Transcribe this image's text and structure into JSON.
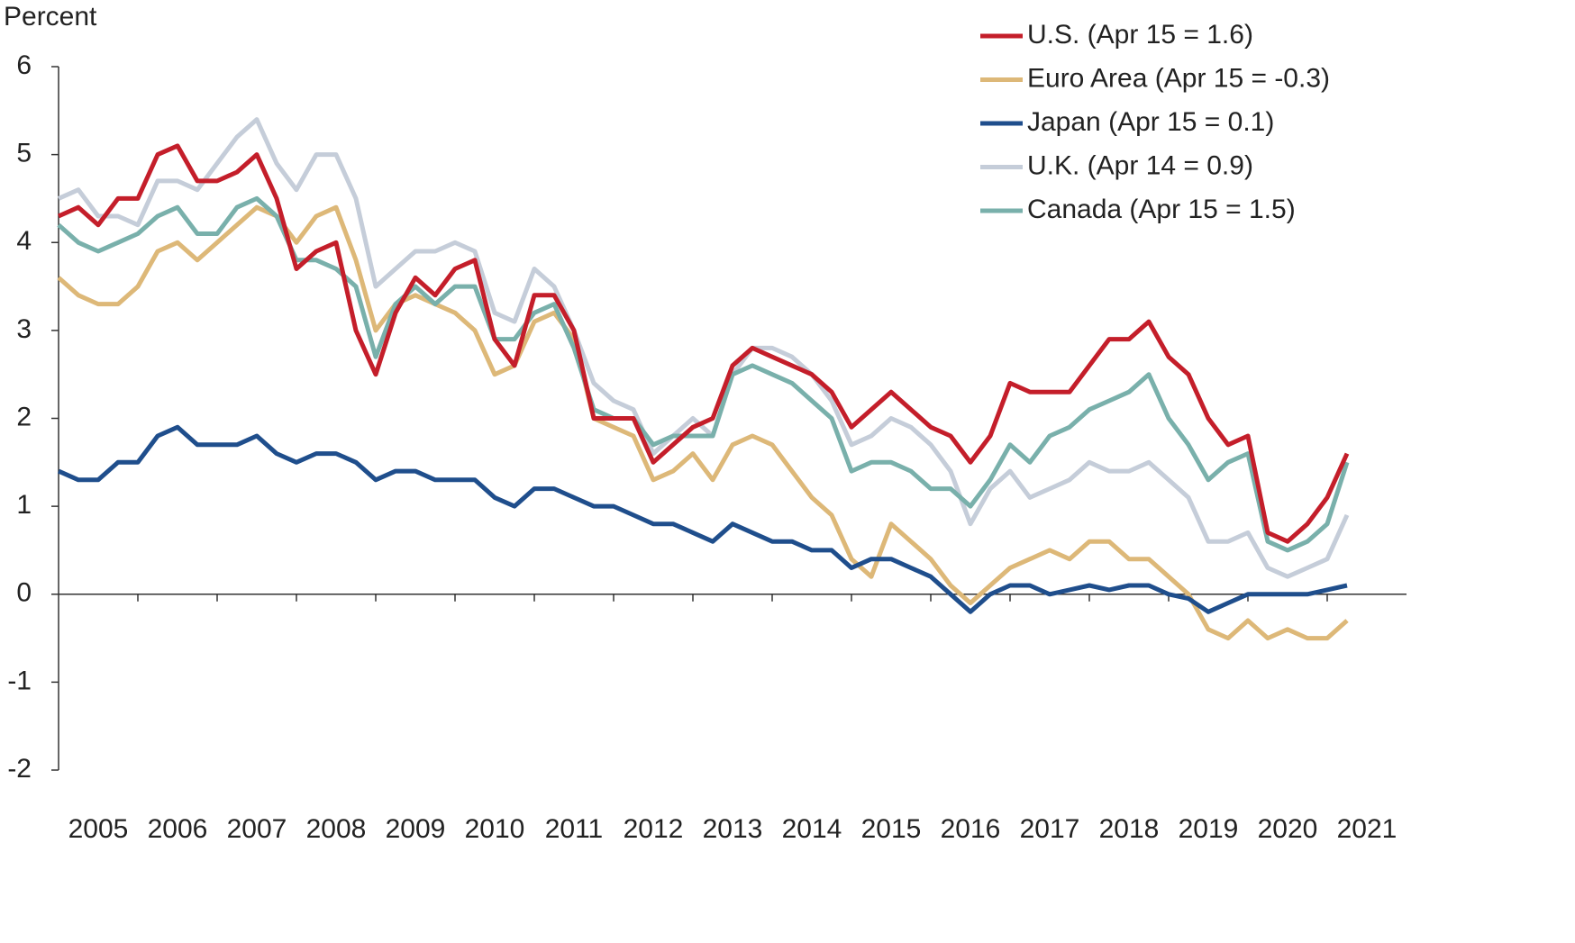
{
  "chart_data": {
    "type": "line",
    "y_label": "Percent",
    "x": [
      2005,
      2005.25,
      2005.5,
      2005.75,
      2006,
      2006.25,
      2006.5,
      2006.75,
      2007,
      2007.25,
      2007.5,
      2007.75,
      2008,
      2008.25,
      2008.5,
      2008.75,
      2009,
      2009.25,
      2009.5,
      2009.75,
      2010,
      2010.25,
      2010.5,
      2010.75,
      2011,
      2011.25,
      2011.5,
      2011.75,
      2012,
      2012.25,
      2012.5,
      2012.75,
      2013,
      2013.25,
      2013.5,
      2013.75,
      2014,
      2014.25,
      2014.5,
      2014.75,
      2015,
      2015.25,
      2015.5,
      2015.75,
      2016,
      2016.25,
      2016.5,
      2016.75,
      2017,
      2017.25,
      2017.5,
      2017.75,
      2018,
      2018.25,
      2018.5,
      2018.75,
      2019,
      2019.25,
      2019.5,
      2019.75,
      2020,
      2020.25,
      2020.5,
      2020.75,
      2021,
      2021.25
    ],
    "series": [
      {
        "name": "U.K. (Apr 14 = 0.9)",
        "color": "#c5cdd9",
        "values": [
          4.5,
          4.6,
          4.3,
          4.3,
          4.2,
          4.7,
          4.7,
          4.6,
          4.9,
          5.2,
          5.4,
          4.9,
          4.6,
          5.0,
          5.0,
          4.5,
          3.5,
          3.7,
          3.9,
          3.9,
          4.0,
          3.9,
          3.2,
          3.1,
          3.7,
          3.5,
          3.0,
          2.4,
          2.2,
          2.1,
          1.6,
          1.8,
          2.0,
          1.8,
          2.5,
          2.8,
          2.8,
          2.7,
          2.5,
          2.2,
          1.7,
          1.8,
          2.0,
          1.9,
          1.7,
          1.4,
          0.8,
          1.2,
          1.4,
          1.1,
          1.2,
          1.3,
          1.5,
          1.4,
          1.4,
          1.5,
          1.3,
          1.1,
          0.6,
          0.6,
          0.7,
          0.3,
          0.2,
          0.3,
          0.4,
          0.9
        ]
      },
      {
        "name": "Euro Area (Apr 15 = -0.3)",
        "color": "#ddb878",
        "values": [
          3.6,
          3.4,
          3.3,
          3.3,
          3.5,
          3.9,
          4.0,
          3.8,
          4.0,
          4.2,
          4.4,
          4.3,
          4.0,
          4.3,
          4.4,
          3.8,
          3.0,
          3.3,
          3.4,
          3.3,
          3.2,
          3.0,
          2.5,
          2.6,
          3.1,
          3.2,
          2.9,
          2.0,
          1.9,
          1.8,
          1.3,
          1.4,
          1.6,
          1.3,
          1.7,
          1.8,
          1.7,
          1.4,
          1.1,
          0.9,
          0.4,
          0.2,
          0.8,
          0.6,
          0.4,
          0.1,
          -0.1,
          0.1,
          0.3,
          0.4,
          0.5,
          0.4,
          0.6,
          0.6,
          0.4,
          0.4,
          0.2,
          0.0,
          -0.4,
          -0.5,
          -0.3,
          -0.5,
          -0.4,
          -0.5,
          -0.5,
          -0.3
        ]
      },
      {
        "name": "Canada (Apr 15 = 1.5)",
        "color": "#79b0ab",
        "values": [
          4.2,
          4.0,
          3.9,
          4.0,
          4.1,
          4.3,
          4.4,
          4.1,
          4.1,
          4.4,
          4.5,
          4.3,
          3.8,
          3.8,
          3.7,
          3.5,
          2.7,
          3.3,
          3.5,
          3.3,
          3.5,
          3.5,
          2.9,
          2.9,
          3.2,
          3.3,
          2.8,
          2.1,
          2.0,
          2.0,
          1.7,
          1.8,
          1.8,
          1.8,
          2.5,
          2.6,
          2.5,
          2.4,
          2.2,
          2.0,
          1.4,
          1.5,
          1.5,
          1.4,
          1.2,
          1.2,
          1.0,
          1.3,
          1.7,
          1.5,
          1.8,
          1.9,
          2.1,
          2.2,
          2.3,
          2.5,
          2.0,
          1.7,
          1.3,
          1.5,
          1.6,
          0.6,
          0.5,
          0.6,
          0.8,
          1.5
        ]
      },
      {
        "name": "U.S. (Apr 15 = 1.6)",
        "color": "#c41e2a",
        "values": [
          4.3,
          4.4,
          4.2,
          4.5,
          4.5,
          5.0,
          5.1,
          4.7,
          4.7,
          4.8,
          5.0,
          4.5,
          3.7,
          3.9,
          4.0,
          3.0,
          2.5,
          3.2,
          3.6,
          3.4,
          3.7,
          3.8,
          2.9,
          2.6,
          3.4,
          3.4,
          3.0,
          2.0,
          2.0,
          2.0,
          1.5,
          1.7,
          1.9,
          2.0,
          2.6,
          2.8,
          2.7,
          2.6,
          2.5,
          2.3,
          1.9,
          2.1,
          2.3,
          2.1,
          1.9,
          1.8,
          1.5,
          1.8,
          2.4,
          2.3,
          2.3,
          2.3,
          2.6,
          2.9,
          2.9,
          3.1,
          2.7,
          2.5,
          2.0,
          1.7,
          1.8,
          0.7,
          0.6,
          0.8,
          1.1,
          1.6
        ]
      },
      {
        "name": "Japan (Apr 15 = 0.1)",
        "color": "#1f4e8c",
        "values": [
          1.4,
          1.3,
          1.3,
          1.5,
          1.5,
          1.8,
          1.9,
          1.7,
          1.7,
          1.7,
          1.8,
          1.6,
          1.5,
          1.6,
          1.6,
          1.5,
          1.3,
          1.4,
          1.4,
          1.3,
          1.3,
          1.3,
          1.1,
          1.0,
          1.2,
          1.2,
          1.1,
          1.0,
          1.0,
          0.9,
          0.8,
          0.8,
          0.7,
          0.6,
          0.8,
          0.7,
          0.6,
          0.6,
          0.5,
          0.5,
          0.3,
          0.4,
          0.4,
          0.3,
          0.2,
          0.0,
          -0.2,
          0.0,
          0.1,
          0.1,
          0.0,
          0.05,
          0.1,
          0.05,
          0.1,
          0.1,
          0.0,
          -0.05,
          -0.2,
          -0.1,
          0.0,
          0.0,
          0.0,
          0.0,
          0.05,
          0.1
        ]
      }
    ],
    "legend_order": [
      3,
      1,
      4,
      0,
      2
    ],
    "legend": "upper right",
    "xlim": [
      2005,
      2022
    ],
    "xticks": [
      2005,
      2006,
      2007,
      2008,
      2009,
      2010,
      2011,
      2012,
      2013,
      2014,
      2015,
      2016,
      2017,
      2018,
      2019,
      2020,
      2021
    ],
    "ylim": [
      -2,
      6
    ],
    "yticks": [
      -2,
      -1,
      0,
      1,
      2,
      3,
      4,
      5,
      6
    ],
    "grid": false
  }
}
